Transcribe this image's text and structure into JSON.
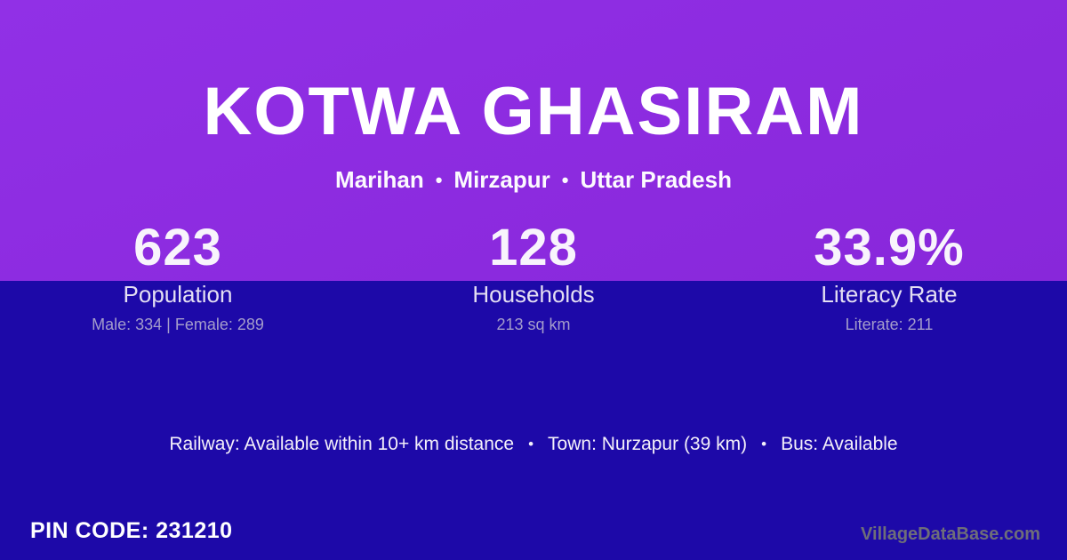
{
  "colors": {
    "top_band": "#8B2BE0",
    "bottom_band": "#1D09A8",
    "title_text": "#FFFFFF",
    "stat_label": "#E4DFF3",
    "stat_detail": "#A49DCB",
    "watermark": "#6E6E79"
  },
  "header": {
    "title": "KOTWA GHASIRAM",
    "tehsil": "Marihan",
    "district": "Mirzapur",
    "state": "Uttar Pradesh",
    "separator": "•"
  },
  "stats": [
    {
      "value": "623",
      "label": "Population",
      "detail": "Male: 334 | Female: 289"
    },
    {
      "value": "128",
      "label": "Households",
      "detail": "213 sq km"
    },
    {
      "value": "33.9%",
      "label": "Literacy Rate",
      "detail": "Literate: 211"
    }
  ],
  "info_line": {
    "railway": "Railway: Available within 10+ km distance",
    "town": "Town: Nurzapur (39 km)",
    "bus": "Bus: Available",
    "separator": "•"
  },
  "footer": {
    "pin_code": "PIN CODE: 231210",
    "watermark": "VillageDataBase.com"
  }
}
